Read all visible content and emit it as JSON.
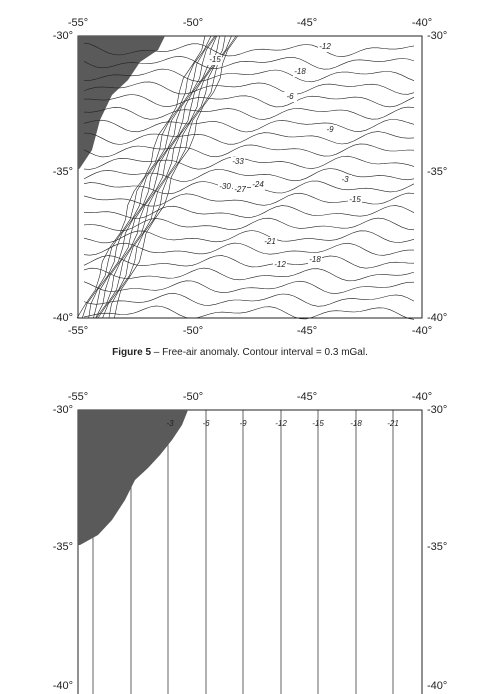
{
  "figure_5": {
    "lon_labels": [
      "-55°",
      "-50°",
      "-45°",
      "-40°"
    ],
    "lat_labels": [
      "-30°",
      "-35°",
      "-40°"
    ],
    "contour_labels": [
      "-12",
      "-18",
      "-9",
      "-6",
      "-15",
      "-33",
      "-30",
      "-27",
      "-24",
      "-21",
      "-3",
      "-18",
      "-12",
      "-15"
    ],
    "caption_label": "Figure 5",
    "caption_text": " – Free-air anomaly. Contour interval = 0.3 mGal."
  },
  "figure_6": {
    "lon_labels": [
      "-55°",
      "-50°",
      "-45°",
      "-40°"
    ],
    "lat_labels": [
      "-30°",
      "-35°",
      "-40°"
    ],
    "contour_labels": [
      "-3",
      "-6",
      "-9",
      "-12",
      "-15",
      "-18",
      "-21"
    ]
  }
}
